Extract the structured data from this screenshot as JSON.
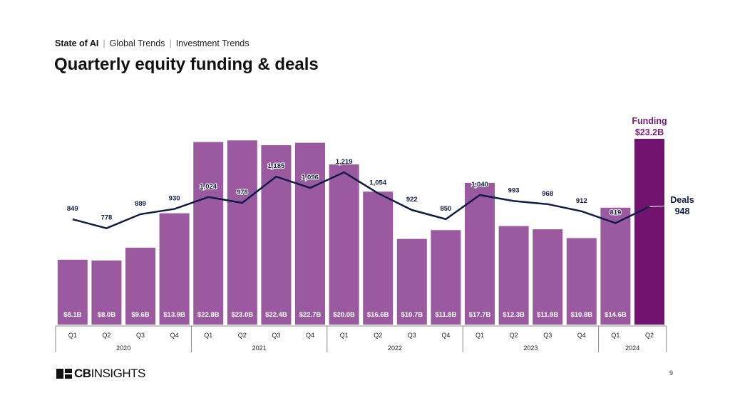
{
  "breadcrumb": {
    "items": [
      "State of AI",
      "Global Trends",
      "Investment Trends"
    ]
  },
  "title": "Quarterly equity funding & deals",
  "chart_data": {
    "type": "bar",
    "categories": [
      "2020 Q1",
      "2020 Q2",
      "2020 Q3",
      "2020 Q4",
      "2021 Q1",
      "2021 Q2",
      "2021 Q3",
      "2021 Q4",
      "2022 Q1",
      "2022 Q2",
      "2022 Q3",
      "2022 Q4",
      "2023 Q1",
      "2023 Q2",
      "2023 Q3",
      "2023 Q4",
      "2024 Q1",
      "2024 Q2"
    ],
    "quarters": [
      "Q1",
      "Q2",
      "Q3",
      "Q4",
      "Q1",
      "Q2",
      "Q3",
      "Q4",
      "Q1",
      "Q2",
      "Q3",
      "Q4",
      "Q1",
      "Q2",
      "Q3",
      "Q4",
      "Q1",
      "Q2"
    ],
    "years": [
      "2020",
      "2021",
      "2022",
      "2023",
      "2024"
    ],
    "series": [
      {
        "name": "Funding",
        "type": "bar",
        "unit": "$B",
        "values": [
          8.1,
          8.0,
          9.6,
          13.9,
          22.8,
          23.0,
          22.4,
          22.7,
          20.0,
          16.6,
          10.7,
          11.8,
          17.7,
          12.3,
          11.9,
          10.8,
          14.6,
          23.2
        ],
        "labels": [
          "$8.1B",
          "$8.0B",
          "$9.6B",
          "$13.9B",
          "$22.8B",
          "$23.0B",
          "$22.4B",
          "$22.7B",
          "$20.0B",
          "$16.6B",
          "$10.7B",
          "$11.8B",
          "$17.7B",
          "$12.3B",
          "$11.9B",
          "$10.8B",
          "$14.6B",
          "$23.2B"
        ]
      },
      {
        "name": "Deals",
        "type": "line",
        "values": [
          849,
          778,
          889,
          930,
          1024,
          978,
          1185,
          1096,
          1219,
          1054,
          922,
          850,
          1040,
          993,
          968,
          912,
          819,
          948
        ],
        "labels": [
          "849",
          "778",
          "889",
          "930",
          "1,024",
          "978",
          "1,185",
          "1,096",
          "1,219",
          "1,054",
          "922",
          "850",
          "1,040",
          "993",
          "968",
          "912",
          "819",
          "948"
        ]
      }
    ],
    "callouts": {
      "funding_label": "Funding",
      "funding_value": "$23.2B",
      "deals_label": "Deals",
      "deals_value": "948"
    },
    "colors": {
      "bar": "#9b5a9f",
      "bar_highlight": "#72136f",
      "line": "#0f1d45",
      "funding_callout": "#7a1a78"
    }
  },
  "footer": {
    "logo": "CBINSIGHTS",
    "page_number": "9"
  }
}
